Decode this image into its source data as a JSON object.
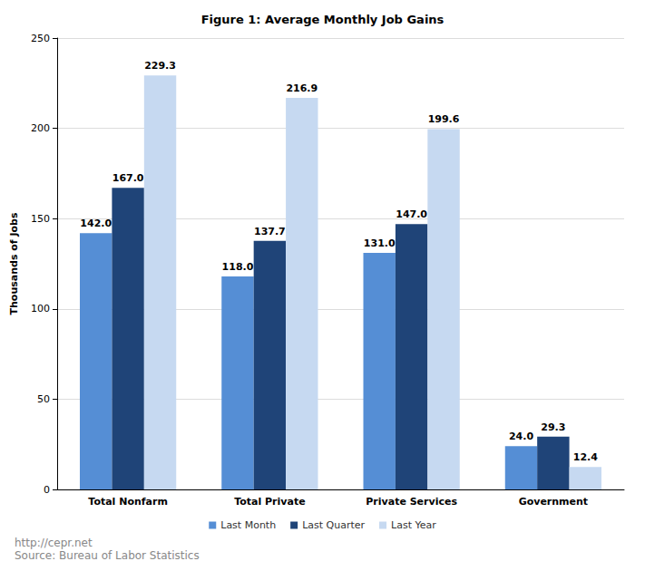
{
  "chart_data": {
    "type": "bar",
    "title": "Figure 1: Average Monthly Job Gains",
    "y_label": "Thousands of Jobs",
    "categories": [
      "Total Nonfarm",
      "Total Private",
      "Private Services",
      "Government"
    ],
    "series": [
      {
        "name": "Last Month",
        "color": "#558ed5",
        "values": [
          142,
          118,
          131,
          24
        ],
        "value_labels": [
          "142.0",
          "118.0",
          "131.0",
          "24.0"
        ]
      },
      {
        "name": "Last Quarter",
        "color": "#1f4478",
        "values": [
          167,
          137.7,
          147,
          29.3
        ],
        "value_labels": [
          "167.0",
          "137.7",
          "147.0",
          "29.3"
        ]
      },
      {
        "name": "Last Year",
        "color": "#c6d9f1",
        "values": [
          229.3,
          216.9,
          199.6,
          12.4
        ],
        "value_labels": [
          "229.3",
          "216.9",
          "199.6",
          "12.4"
        ]
      }
    ],
    "ylim": [
      0,
      250
    ],
    "yticks": [
      0,
      50,
      100,
      150,
      200,
      250
    ],
    "grid": true,
    "legend": "bottom",
    "data_labels": true,
    "annotations": [
      "http://cepr.net",
      "Source: Bureau of Labor Statistics"
    ]
  }
}
